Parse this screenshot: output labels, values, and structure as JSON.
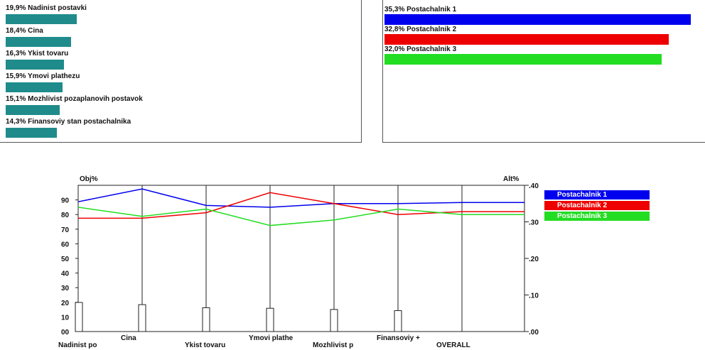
{
  "colors": {
    "objective_bar": "#1f8b8b",
    "alt1": "#0000ee",
    "alt2": "#ee0000",
    "alt3": "#22dd22"
  },
  "objectives_panel": {
    "items": [
      {
        "label": "19,9% Nadinist postavki",
        "weight": 19.9
      },
      {
        "label": "18,4% Cina",
        "weight": 18.4
      },
      {
        "label": "16,3% Ykist tovaru",
        "weight": 16.3
      },
      {
        "label": "15,9% Ymovi plathezu",
        "weight": 15.9
      },
      {
        "label": "15,1% Mozhlivist pozaplanovih postavok",
        "weight": 15.1
      },
      {
        "label": "14,3% Finansoviy stan postachalnika",
        "weight": 14.3
      }
    ]
  },
  "alternatives_panel": {
    "items": [
      {
        "label": "35,3% Postachalnik 1",
        "weight": 35.3
      },
      {
        "label": "32,8% Postachalnik 2",
        "weight": 32.8
      },
      {
        "label": "32,0% Postachalnik 3",
        "weight": 32.0
      }
    ]
  },
  "chart_data": {
    "type": "line",
    "left_axis_label": "Obj%",
    "right_axis_label": "Alt%",
    "left_ticks": [
      "90",
      "80",
      "70",
      "60",
      "50",
      "40",
      "30",
      "20",
      "10",
      "00"
    ],
    "right_ticks": [
      ".40",
      ".30",
      ".20",
      ".10",
      ".00"
    ],
    "left_ylim": [
      0,
      100
    ],
    "right_ylim": [
      0,
      0.4
    ],
    "categories": [
      "Nadinist po",
      "Cina",
      "Ykist tovaru",
      "Ymovi plathe",
      "Mozhlivist p",
      "Finansoviy +",
      "OVERALL"
    ],
    "objective_weights": [
      19.9,
      18.4,
      16.3,
      15.9,
      15.1,
      14.3
    ],
    "series": [
      {
        "name": "Postachalnik 1",
        "color": "#0000ee",
        "values": [
          0.355,
          0.39,
          0.345,
          0.34,
          0.35,
          0.35,
          0.353
        ]
      },
      {
        "name": "Postachalnik 2",
        "color": "#ee0000",
        "values": [
          0.31,
          0.31,
          0.325,
          0.38,
          0.35,
          0.32,
          0.328
        ]
      },
      {
        "name": "Postachalnik 3",
        "color": "#22dd22",
        "values": [
          0.34,
          0.315,
          0.335,
          0.29,
          0.305,
          0.335,
          0.32
        ]
      }
    ],
    "legend_position": "right"
  }
}
